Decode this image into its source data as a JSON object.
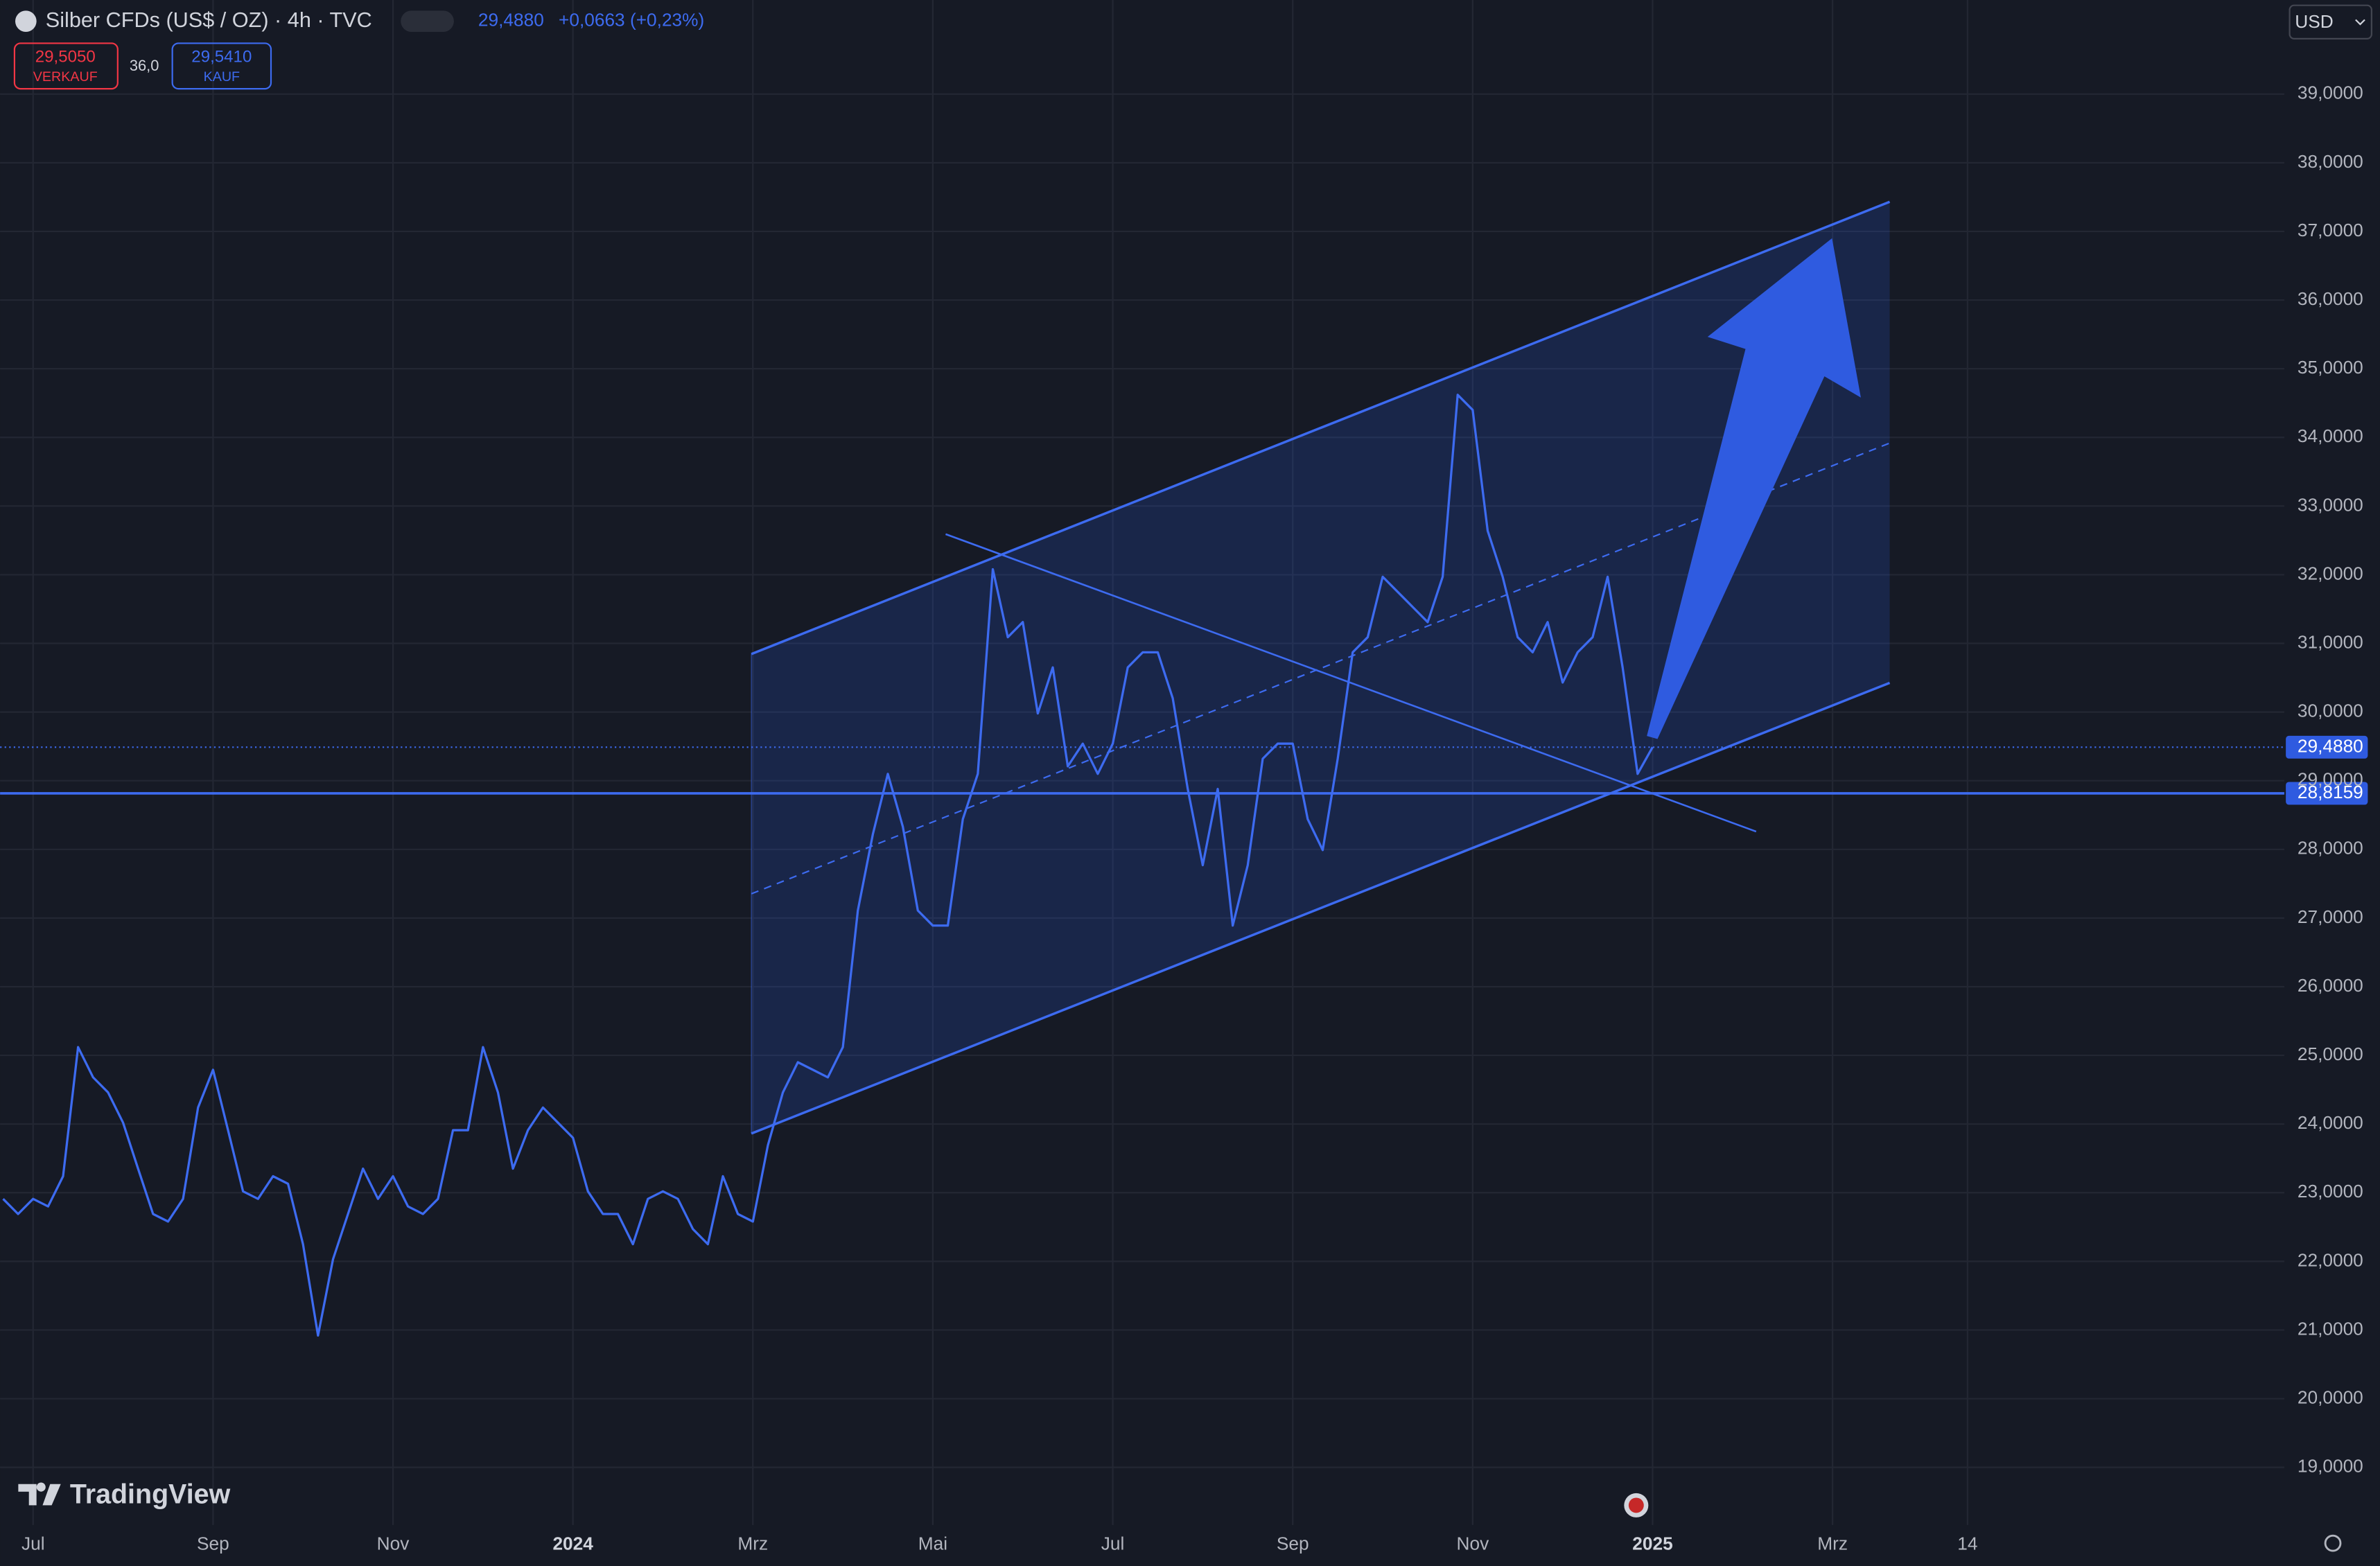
{
  "header": {
    "title": "Silber CFDs (US$ / OZ) · 4h · TVC",
    "last": "29,4880",
    "change": "+0,0663 (+0,23%)",
    "sell_price": "29,5050",
    "sell_label": "VERKAUF",
    "spread": "36,0",
    "buy_price": "29,5410",
    "buy_label": "KAUF",
    "currency": "USD",
    "brand": "TradingView"
  },
  "chart_data": {
    "type": "line",
    "color": "#3d6bf0",
    "categories": [
      null,
      null,
      "Jul",
      null,
      null,
      null,
      null,
      null,
      null,
      null,
      null,
      null,
      null,
      null,
      "Sep",
      null,
      null,
      null,
      null,
      null,
      null,
      null,
      null,
      null,
      null,
      null,
      "Nov",
      null,
      null,
      null,
      null,
      null,
      null,
      null,
      null,
      null,
      null,
      null,
      "2024",
      null,
      null,
      null,
      null,
      null,
      null,
      null,
      null,
      null,
      null,
      null,
      "Mrz",
      null,
      null,
      null,
      null,
      null,
      null,
      null,
      null,
      null,
      null,
      null,
      "Mai",
      null,
      null,
      null,
      null,
      null,
      null,
      null,
      null,
      null,
      null,
      null,
      "Jul",
      null,
      null,
      null,
      null,
      null,
      null,
      null,
      null,
      null,
      null,
      null,
      "Sep",
      null,
      null,
      null,
      null,
      null,
      null,
      null,
      null,
      null,
      null,
      null,
      "Nov",
      null,
      null,
      null,
      null,
      null,
      null,
      null,
      null,
      null,
      null,
      null,
      "2025",
      null,
      null,
      null,
      null,
      null,
      null,
      null,
      null,
      null,
      null,
      null,
      "Mrz",
      null,
      null,
      null,
      null,
      null,
      null,
      null,
      null,
      "14"
    ],
    "values": [
      22.91,
      22.69,
      22.91,
      22.8,
      23.24,
      25.12,
      24.68,
      24.46,
      24.02,
      23.35,
      22.69,
      22.58,
      22.91,
      24.24,
      24.79,
      23.91,
      23.02,
      22.91,
      23.24,
      23.13,
      22.25,
      20.92,
      22.03,
      22.69,
      23.35,
      22.91,
      23.24,
      22.8,
      22.69,
      22.91,
      23.91,
      23.91,
      25.12,
      24.46,
      23.35,
      23.91,
      24.24,
      24.02,
      23.8,
      23.02,
      22.69,
      22.69,
      22.25,
      22.91,
      23.02,
      22.91,
      22.47,
      22.25,
      23.24,
      22.69,
      22.58,
      23.69,
      24.46,
      24.9,
      24.79,
      24.68,
      25.12,
      27.11,
      28.22,
      29.1,
      28.33,
      27.11,
      26.89,
      26.89,
      28.44,
      29.1,
      32.08,
      31.09,
      31.31,
      29.98,
      30.65,
      29.21,
      29.54,
      29.1,
      29.54,
      30.65,
      30.87,
      30.87,
      30.2,
      28.88,
      27.77,
      28.88,
      26.89,
      27.77,
      29.32,
      29.54,
      29.54,
      28.44,
      27.99,
      29.32,
      30.87,
      31.09,
      31.97,
      31.75,
      31.53,
      31.31,
      31.97,
      34.62,
      34.4,
      32.64,
      31.97,
      31.09,
      30.87,
      31.31,
      30.43,
      30.87,
      31.09,
      31.97,
      30.65,
      29.1,
      29.49,
      null,
      null,
      null,
      null,
      null,
      null,
      null,
      null,
      null,
      null,
      null,
      null,
      null,
      null,
      null,
      null,
      null,
      null,
      null,
      null,
      null
    ],
    "ylim": [
      18.16,
      40.37
    ],
    "yticks": [
      {
        "value": 19,
        "label": "19,0000"
      },
      {
        "value": 20,
        "label": "20,0000"
      },
      {
        "value": 21,
        "label": "21,0000"
      },
      {
        "value": 22,
        "label": "22,0000"
      },
      {
        "value": 23,
        "label": "23,0000"
      },
      {
        "value": 24,
        "label": "24,0000"
      },
      {
        "value": 25,
        "label": "25,0000"
      },
      {
        "value": 26,
        "label": "26,0000"
      },
      {
        "value": 27,
        "label": "27,0000"
      },
      {
        "value": 28,
        "label": "28,0000"
      },
      {
        "value": 29,
        "label": "29,0000"
      },
      {
        "value": 30,
        "label": "30,0000"
      },
      {
        "value": 31,
        "label": "31,0000"
      },
      {
        "value": 32,
        "label": "32,0000"
      },
      {
        "value": 33,
        "label": "33,0000"
      },
      {
        "value": 34,
        "label": "34,0000"
      },
      {
        "value": 35,
        "label": "35,0000"
      },
      {
        "value": 36,
        "label": "36,0000"
      },
      {
        "value": 37,
        "label": "37,0000"
      },
      {
        "value": 38,
        "label": "38,0000"
      },
      {
        "value": 39,
        "label": "39,0000"
      }
    ],
    "grid": true,
    "last_price": {
      "value": 29.488,
      "label": "29,4880"
    },
    "hline": {
      "value": 28.8159,
      "label": "28,8159"
    }
  }
}
